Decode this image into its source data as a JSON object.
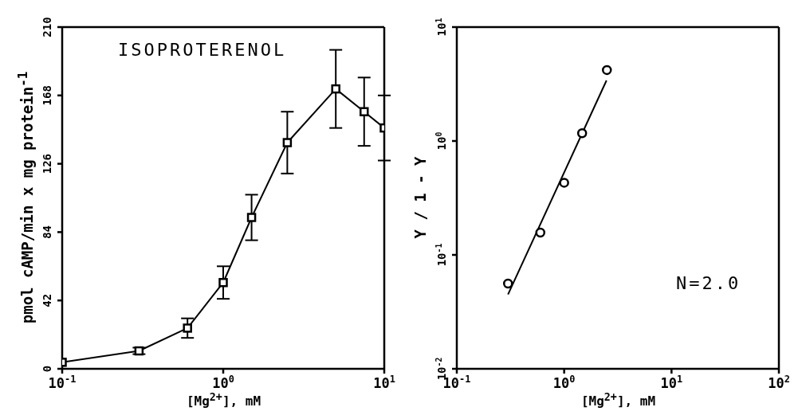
{
  "chart_data": [
    {
      "type": "line",
      "xlabel": "[Mg$^{2+}$], mM",
      "ylabel": "pmol cAMP/min x mg protein$^{-1}$",
      "annotations": [
        "ISOPROTERENOL"
      ],
      "x": [
        0.1,
        0.3,
        0.6,
        1.0,
        1.5,
        2.5,
        5,
        7.5,
        10
      ],
      "values": [
        4,
        11,
        25,
        53,
        93,
        139,
        172,
        158,
        148
      ],
      "errors": [
        null,
        2,
        6,
        10,
        14,
        19,
        24,
        21,
        20
      ],
      "color": "#000000",
      "marker": "square",
      "line_style": "solid",
      "log": "x",
      "xlim": [
        0.1,
        10
      ],
      "xticks": [
        {
          "value": 0.1,
          "label": "10$^{-1}$"
        },
        {
          "value": 1,
          "label": "10$^{0}$"
        },
        {
          "value": 10,
          "label": "10$^{1}$"
        }
      ],
      "ylim": [
        0,
        210
      ],
      "yticks": [
        0,
        42,
        84,
        126,
        168,
        210
      ],
      "grid": false
    },
    {
      "type": "scatter",
      "xlabel": "[Mg$^{2+}$], mM",
      "ylabel": "Y / 1 - Y",
      "annotations": [
        "N=2.0"
      ],
      "marker": "circle",
      "log": "xy",
      "xlim": [
        0.1,
        100
      ],
      "xticks": [
        {
          "value": 0.1,
          "label": "10$^{-1}$"
        },
        {
          "value": 1,
          "label": "10$^{0}$"
        },
        {
          "value": 10,
          "label": "10$^{1}$"
        },
        {
          "value": 100,
          "label": "10$^{2}$"
        }
      ],
      "ylim": [
        0.01,
        10
      ],
      "yticks": [
        {
          "value": 0.01,
          "label": "10$^{-2}$"
        },
        {
          "value": 0.1,
          "label": "10$^{-1}$"
        },
        {
          "value": 1,
          "label": "10$^{0}$"
        },
        {
          "value": 10,
          "label": "10$^{1}$"
        }
      ],
      "grid": false,
      "series": [
        {
          "color": "#000000",
          "x": [
            0.3,
            0.6,
            1.0,
            1.47,
            2.5
          ],
          "values": [
            0.056,
            0.157,
            0.43,
            1.17,
            4.2
          ]
        },
        {
          "type": "line",
          "marker": "none",
          "color": "#000000",
          "x": [
            0.3,
            2.48
          ],
          "values": [
            0.045,
            3.4
          ]
        }
      ]
    }
  ]
}
